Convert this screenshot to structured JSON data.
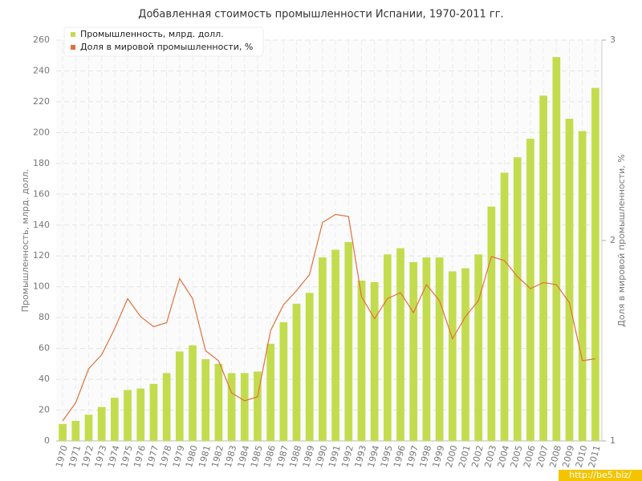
{
  "chart_data": {
    "type": "bar",
    "title": "Добавленная стоимость промышленности Испании, 1970-2011 гг.",
    "y_label": "Промышленность, млрд. долл.",
    "y2_label": "Доля в мировой промышленности, %",
    "watermark": "http://be5.biz/",
    "categories": [
      "1970",
      "1971",
      "1972",
      "1973",
      "1974",
      "1975",
      "1976",
      "1977",
      "1978",
      "1979",
      "1980",
      "1981",
      "1982",
      "1983",
      "1984",
      "1985",
      "1986",
      "1987",
      "1988",
      "1989",
      "1990",
      "1991",
      "1992",
      "1993",
      "1994",
      "1995",
      "1996",
      "1997",
      "1998",
      "1999",
      "2000",
      "2001",
      "2002",
      "2003",
      "2004",
      "2005",
      "2006",
      "2007",
      "2008",
      "2009",
      "2010",
      "2011"
    ],
    "series": [
      {
        "name": "Промышленность, млрд. долл.",
        "type": "bar",
        "color": "#c3dc4e",
        "values": [
          11,
          13,
          17,
          22,
          28,
          33,
          34,
          37,
          44,
          58,
          62,
          53,
          50,
          44,
          44,
          45,
          63,
          77,
          89,
          96,
          119,
          124,
          129,
          104,
          103,
          121,
          125,
          116,
          119,
          119,
          110,
          112,
          121,
          152,
          174,
          184,
          196,
          224,
          249,
          209,
          201,
          229
        ]
      },
      {
        "name": "Доля в мировой промышленности, %",
        "type": "line",
        "axis": "y2",
        "color": "#e0703f",
        "values": [
          1.1,
          1.19,
          1.36,
          1.43,
          1.56,
          1.71,
          1.62,
          1.57,
          1.59,
          1.81,
          1.71,
          1.45,
          1.4,
          1.24,
          1.2,
          1.22,
          1.55,
          1.68,
          1.75,
          1.83,
          2.09,
          2.13,
          2.12,
          1.72,
          1.61,
          1.71,
          1.74,
          1.64,
          1.78,
          1.7,
          1.51,
          1.62,
          1.7,
          1.92,
          1.9,
          1.82,
          1.76,
          1.79,
          1.78,
          1.69,
          1.4,
          1.41
        ]
      }
    ],
    "ylim": [
      0,
      260
    ],
    "yticks": [
      0,
      20,
      40,
      60,
      80,
      100,
      120,
      140,
      160,
      180,
      200,
      220,
      240,
      260
    ],
    "y2lim": [
      1,
      3
    ],
    "y2ticks": [
      1,
      2,
      3
    ],
    "grid": true,
    "legend": "top-left"
  }
}
